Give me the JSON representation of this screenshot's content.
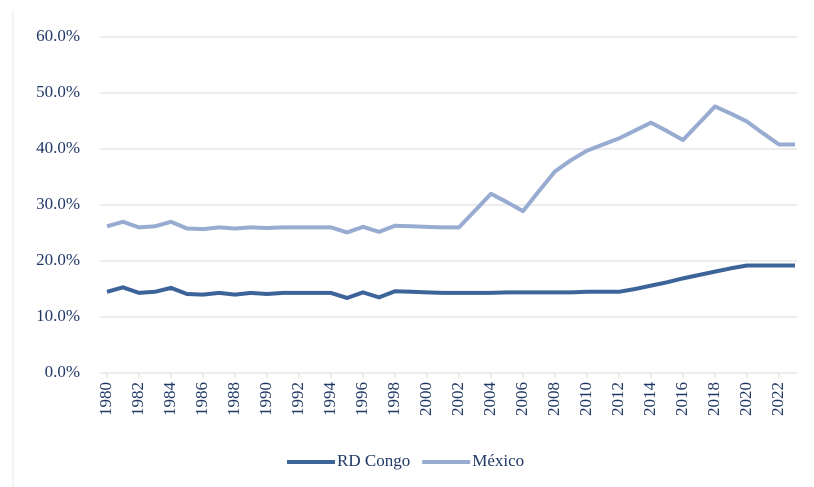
{
  "chart_data": {
    "type": "line",
    "x": [
      1980,
      1981,
      1982,
      1983,
      1984,
      1985,
      1986,
      1987,
      1988,
      1989,
      1990,
      1991,
      1992,
      1993,
      1994,
      1995,
      1996,
      1997,
      1998,
      1999,
      2000,
      2001,
      2002,
      2003,
      2004,
      2005,
      2006,
      2007,
      2008,
      2009,
      2010,
      2011,
      2012,
      2013,
      2014,
      2015,
      2016,
      2017,
      2018,
      2019,
      2020,
      2021,
      2022,
      2023
    ],
    "xlim": [
      1980,
      2023
    ],
    "xticks": [
      1980,
      1982,
      1984,
      1986,
      1988,
      1990,
      1992,
      1994,
      1996,
      1998,
      2000,
      2002,
      2004,
      2006,
      2008,
      2010,
      2012,
      2014,
      2016,
      2018,
      2020,
      2022
    ],
    "ylim": [
      0,
      60
    ],
    "yticks": [
      {
        "value": 0,
        "label": "0.0%"
      },
      {
        "value": 10,
        "label": "10.0%"
      },
      {
        "value": 20,
        "label": "20.0%"
      },
      {
        "value": 30,
        "label": "30.0%"
      },
      {
        "value": 40,
        "label": "40.0%"
      },
      {
        "value": 50,
        "label": "50.0%"
      },
      {
        "value": 60,
        "label": "60.0%"
      }
    ],
    "grid": true,
    "legend": "bottom",
    "series": [
      {
        "name": "RD Congo",
        "color": "#3d6499",
        "values": [
          14.5,
          15.3,
          14.3,
          14.5,
          15.2,
          14.1,
          14.0,
          14.3,
          14.0,
          14.3,
          14.1,
          14.3,
          14.3,
          14.3,
          14.3,
          13.4,
          14.4,
          13.5,
          14.6,
          14.5,
          14.4,
          14.3,
          14.3,
          14.3,
          14.3,
          14.4,
          14.4,
          14.4,
          14.4,
          14.4,
          14.5,
          14.5,
          14.5,
          15.0,
          15.6,
          16.2,
          16.9,
          17.5,
          18.1,
          18.7,
          19.2,
          19.2,
          19.2,
          19.2
        ]
      },
      {
        "name": "México",
        "color": "#98abd0",
        "values": [
          26.2,
          27.0,
          26.0,
          26.2,
          27.0,
          25.8,
          25.7,
          26.0,
          25.8,
          26.0,
          25.9,
          26.0,
          26.0,
          26.0,
          26.0,
          25.1,
          26.1,
          25.2,
          26.3,
          26.2,
          26.1,
          26.0,
          26.0,
          29.0,
          32.0,
          30.5,
          28.9,
          32.5,
          36.0,
          38.0,
          39.7,
          40.8,
          41.9,
          43.3,
          44.7,
          43.2,
          41.6,
          44.6,
          47.6,
          46.3,
          44.9,
          42.8,
          40.8,
          40.8
        ]
      }
    ]
  }
}
